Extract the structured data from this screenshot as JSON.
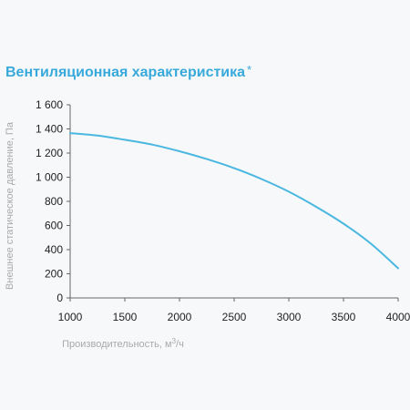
{
  "chart_data": {
    "type": "line",
    "title": "Вентиляционная характеристика",
    "title_mark": "*",
    "xlabel": "Производительность, м",
    "xlabel_sup": "3",
    "xlabel_tail": "/ч",
    "ylabel": "Внешнее статическое давление, Па",
    "xlim": [
      1000,
      4000
    ],
    "ylim": [
      0,
      1600
    ],
    "x_ticks": [
      1000,
      1500,
      2000,
      2500,
      3000,
      3500,
      4000
    ],
    "x_tick_labels": [
      "1000",
      "1500",
      "2000",
      "2500",
      "3000",
      "3500",
      "4000"
    ],
    "y_ticks": [
      0,
      200,
      400,
      600,
      800,
      1000,
      1200,
      1400,
      1600
    ],
    "y_tick_labels": [
      "0",
      "200",
      "400",
      "600",
      "800",
      "1 000",
      "1 200",
      "1 400",
      "1 600"
    ],
    "grid": false,
    "series": [
      {
        "color": "#4ab7e0",
        "x": [
          1000,
          1250,
          1500,
          1750,
          2000,
          2250,
          2500,
          2750,
          3000,
          3250,
          3500,
          3750,
          4000
        ],
        "y": [
          1365,
          1345,
          1310,
          1270,
          1215,
          1150,
          1075,
          985,
          880,
          755,
          615,
          450,
          245
        ]
      }
    ]
  },
  "colors": {
    "title": "#38a9db",
    "line": "#4ab7e0",
    "axis": "#666666",
    "axis_title": "#a9a9a9",
    "background": "#f7f8fa"
  }
}
